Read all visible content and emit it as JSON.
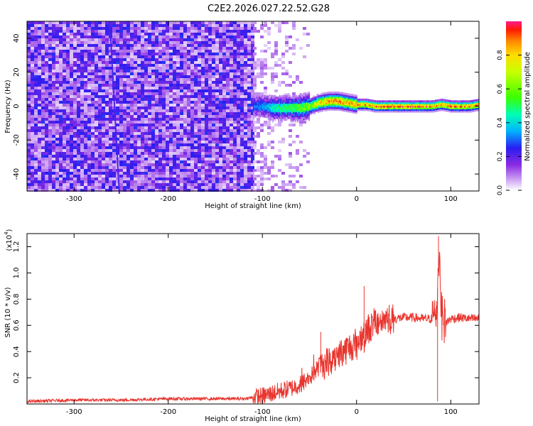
{
  "title": "C2E2.2026.027.22.52.G28",
  "chart_data": [
    {
      "type": "heatmap",
      "title": "C2E2.2026.027.22.52.G28",
      "xlabel": "Height of straight line (km)",
      "ylabel": "Frequency (Hz)",
      "xlim": [
        -350,
        130
      ],
      "ylim": [
        -50,
        50
      ],
      "xticks": [
        -300,
        -200,
        -100,
        0,
        100
      ],
      "yticks": [
        -40,
        -20,
        0,
        20,
        40
      ],
      "colorbar": {
        "label": "Normalized spectral amplitude",
        "range": [
          0,
          1
        ],
        "ticks": [
          "0.0",
          "0.2",
          "0.4",
          "0.6",
          "0.8"
        ],
        "tick_values": [
          0.0,
          0.2,
          0.4,
          0.6,
          0.8
        ]
      },
      "noise_region": {
        "x_range": [
          -350,
          -110
        ],
        "amplitude": 0.25
      },
      "ridge": {
        "description": "narrow high-amplitude ridge near 0 Hz",
        "x": [
          -110,
          -100,
          -90,
          -80,
          -70,
          -60,
          -50,
          -45,
          -40,
          -30,
          -20,
          -10,
          0,
          10,
          20,
          30,
          40,
          50,
          60,
          70,
          80,
          90,
          100,
          110,
          120,
          130
        ],
        "freq": [
          0,
          0,
          -1,
          -1,
          -1,
          -1,
          0,
          1,
          2,
          3,
          3,
          2,
          1,
          1,
          0,
          0,
          0,
          0,
          0,
          0,
          0,
          1,
          0,
          0,
          0,
          1
        ],
        "amplitude": [
          0.3,
          0.35,
          0.45,
          0.5,
          0.55,
          0.6,
          0.65,
          0.75,
          0.85,
          0.9,
          0.95,
          0.88,
          0.9,
          0.92,
          0.95,
          0.93,
          0.95,
          0.94,
          0.95,
          0.93,
          0.9,
          0.92,
          0.94,
          0.93,
          0.9,
          0.92
        ]
      }
    },
    {
      "type": "line",
      "xlabel": "Height of straight line (km)",
      "ylabel": "SNR (10 * v/v)",
      "y_multiplier": "(x10",
      "y_exponent": "4",
      "y_multiplier_close": ")",
      "xlim": [
        -350,
        130
      ],
      "ylim": [
        0,
        1.3
      ],
      "xticks": [
        -300,
        -200,
        -100,
        0,
        100
      ],
      "yticks": [
        0.2,
        0.4,
        0.6,
        0.8,
        1.0,
        1.2
      ],
      "ytick_labels": [
        "0.2",
        "0.4",
        "0.6",
        "0.8",
        "1.0",
        "1.2"
      ],
      "color": "#e8352e",
      "series": [
        {
          "name": "SNR",
          "x": [
            -350,
            -300,
            -250,
            -200,
            -150,
            -120,
            -110,
            -100,
            -90,
            -80,
            -70,
            -60,
            -50,
            -40,
            -30,
            -20,
            -10,
            0,
            10,
            20,
            30,
            40,
            50,
            60,
            70,
            80,
            85,
            88,
            90,
            95,
            100,
            110,
            120,
            130
          ],
          "y": [
            0.02,
            0.03,
            0.03,
            0.04,
            0.04,
            0.04,
            0.05,
            0.06,
            0.08,
            0.1,
            0.12,
            0.15,
            0.2,
            0.28,
            0.33,
            0.38,
            0.42,
            0.47,
            0.56,
            0.62,
            0.65,
            0.65,
            0.66,
            0.66,
            0.65,
            0.65,
            0.72,
            1.2,
            0.7,
            0.62,
            0.65,
            0.66,
            0.65,
            0.65
          ]
        }
      ],
      "spikes": [
        {
          "x": 8,
          "y": 0.9
        },
        {
          "x": 87,
          "y": 1.28
        },
        {
          "x": 86,
          "y": 0.02
        },
        {
          "x": -38,
          "y": 0.55
        }
      ]
    }
  ]
}
